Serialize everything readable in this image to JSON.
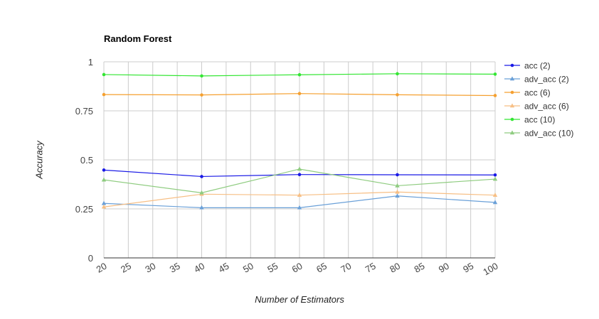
{
  "chart_data": {
    "type": "line",
    "title": "Random Forest",
    "xlabel": "Number of Estimators",
    "ylabel": "Accuracy",
    "xlim": [
      20,
      100
    ],
    "ylim": [
      0,
      1
    ],
    "x_ticks": [
      "20",
      "25",
      "30",
      "35",
      "40",
      "45",
      "50",
      "55",
      "60",
      "65",
      "70",
      "75",
      "80",
      "85",
      "90",
      "95",
      "100"
    ],
    "y_ticks": [
      "0",
      "0.25",
      "0.5",
      "0.75",
      "1"
    ],
    "grid": true,
    "legend_position": "right",
    "x": [
      20,
      40,
      60,
      80,
      100
    ],
    "series": [
      {
        "name": "acc (2)",
        "marker": "circle",
        "color": "#1a1ae6",
        "values": [
          0.448,
          0.415,
          0.425,
          0.424,
          0.423
        ]
      },
      {
        "name": "adv_acc (2)",
        "marker": "triangle",
        "color": "#6aa0d8",
        "values": [
          0.278,
          0.256,
          0.256,
          0.316,
          0.283
        ]
      },
      {
        "name": "acc (6)",
        "marker": "circle",
        "color": "#f5a030",
        "values": [
          0.833,
          0.831,
          0.838,
          0.832,
          0.828
        ]
      },
      {
        "name": "adv_acc (6)",
        "marker": "triangle",
        "color": "#f7bf85",
        "values": [
          0.26,
          0.325,
          0.32,
          0.336,
          0.32
        ]
      },
      {
        "name": "acc (10)",
        "marker": "circle",
        "color": "#33e633",
        "values": [
          0.935,
          0.928,
          0.934,
          0.939,
          0.937
        ]
      },
      {
        "name": "adv_acc (10)",
        "marker": "triangle",
        "color": "#8fcc80",
        "values": [
          0.398,
          0.332,
          0.453,
          0.368,
          0.402
        ]
      }
    ]
  }
}
